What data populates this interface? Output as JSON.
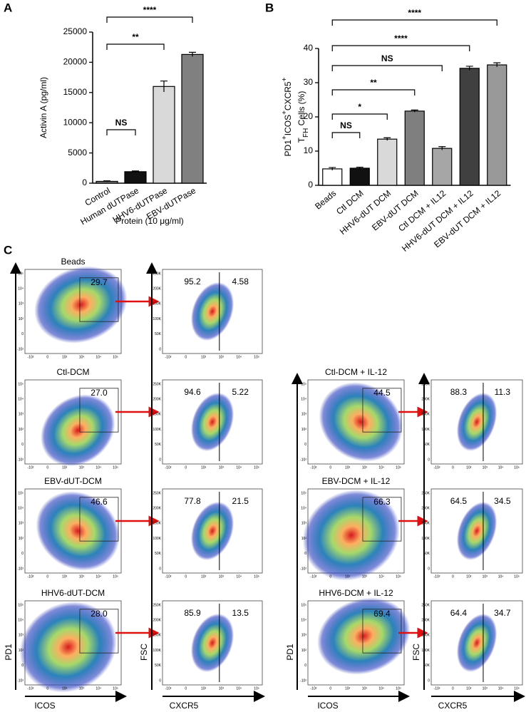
{
  "chart_data": [
    {
      "type": "bar",
      "panel_label": "A",
      "ylabel": "Activin A (pg/ml)",
      "xlabel": "Protein (10 μg/ml)",
      "categories": [
        "Control",
        "Human dUTPase",
        "HHV6-dUTPase",
        "EBV-dUTPase"
      ],
      "values": [
        300,
        1900,
        16000,
        21300
      ],
      "errors": [
        80,
        120,
        900,
        350
      ],
      "colors": [
        "#808080",
        "#111111",
        "#d9d9d9",
        "#808080"
      ],
      "ylim": [
        0,
        25000
      ],
      "yticks": [
        0,
        5000,
        10000,
        15000,
        20000,
        25000
      ],
      "comparisons": [
        {
          "label": "NS",
          "between": [
            0,
            1
          ]
        },
        {
          "label": "**",
          "between": [
            0,
            2
          ]
        },
        {
          "label": "****",
          "between": [
            0,
            3
          ]
        }
      ]
    },
    {
      "type": "bar",
      "panel_label": "B",
      "ylabel_lines": [
        [
          {
            "text": "PD1"
          },
          {
            "text": "+",
            "sup": true
          },
          {
            "text": "ICOS"
          },
          {
            "text": "+",
            "sup": true
          },
          {
            "text": "CXCR5"
          },
          {
            "text": "+",
            "sup": true
          }
        ],
        [
          {
            "text": "T"
          },
          {
            "text": "FH",
            "sub": true
          },
          {
            "text": " Cells (%)"
          }
        ]
      ],
      "categories": [
        "Beads",
        "Ctl DCM",
        "HHV6-dUT DCM",
        "EBV-dUT DCM",
        "Ctl DCM + IL12",
        "HHV6-dUT DCM + IL12",
        "EBV-dUT DCM + IL12"
      ],
      "values": [
        4.8,
        5.0,
        13.5,
        21.7,
        10.8,
        34.2,
        35.2
      ],
      "errors": [
        0.4,
        0.3,
        0.4,
        0.3,
        0.5,
        0.6,
        0.6
      ],
      "colors": [
        "#ffffff",
        "#111111",
        "#d9d9d9",
        "#7f7f7f",
        "#a6a6a6",
        "#404040",
        "#999999"
      ],
      "ylim": [
        0,
        40
      ],
      "yticks": [
        0,
        10,
        20,
        30,
        40
      ],
      "comparisons": [
        {
          "label": "NS",
          "between": [
            0,
            1
          ]
        },
        {
          "label": "*",
          "between": [
            0,
            2
          ]
        },
        {
          "label": "**",
          "between": [
            0,
            3
          ]
        },
        {
          "label": "NS",
          "between": [
            0,
            4
          ]
        },
        {
          "label": "****",
          "between": [
            0,
            5
          ]
        },
        {
          "label": "****",
          "between": [
            0,
            6
          ]
        }
      ]
    }
  ],
  "panel_c": {
    "label": "C",
    "pd1_axis": "PD1",
    "icos_axis": "ICOS",
    "fsc_axis": "FSC",
    "cxcr5_axis": "CXCR5",
    "log_ticks": [
      "-10²",
      "0",
      "10²",
      "10³",
      "10⁴",
      "10⁵"
    ],
    "fsc_ticks": [
      "0",
      "50K",
      "100K",
      "150K",
      "200K",
      "250K"
    ],
    "left": [
      {
        "title": "Beads",
        "gate": "29.7",
        "fsc_left": "95.2",
        "fsc_right": "4.58"
      },
      {
        "title": "Ctl-DCM",
        "gate": "27.0",
        "fsc_left": "94.6",
        "fsc_right": "5.22"
      },
      {
        "title": "EBV-dUT-DCM",
        "gate": "46.6",
        "fsc_left": "77.8",
        "fsc_right": "21.5"
      },
      {
        "title": "HHV6-dUT-DCM",
        "gate": "28.0",
        "fsc_left": "85.9",
        "fsc_right": "13.5"
      }
    ],
    "right": [
      {
        "title": "Ctl-DCM + IL-12",
        "gate": "44.5",
        "fsc_left": "88.3",
        "fsc_right": "11.3"
      },
      {
        "title": "EBV-DCM + IL-12",
        "gate": "66.3",
        "fsc_left": "64.5",
        "fsc_right": "34.5"
      },
      {
        "title": "HHV6-DCM + IL-12",
        "gate": "69.4",
        "fsc_left": "64.4",
        "fsc_right": "34.7"
      }
    ]
  }
}
